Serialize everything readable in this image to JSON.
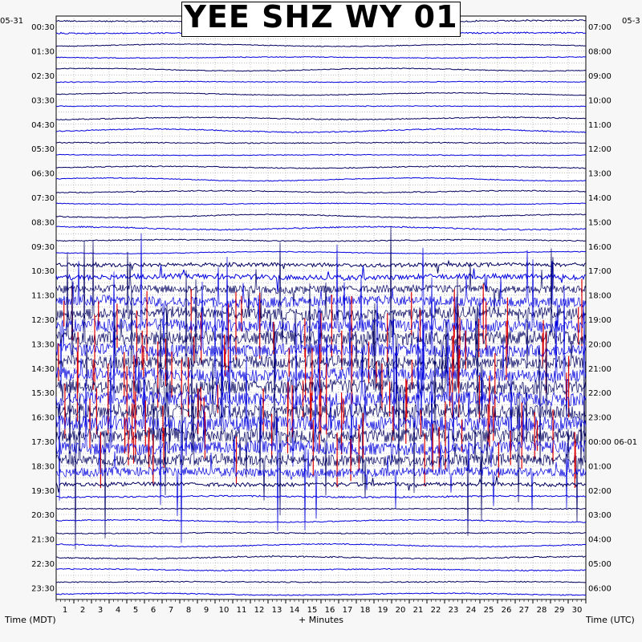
{
  "title": "YEE SHZ WY 01",
  "left_date": "05-31",
  "right_date": "05-3",
  "x_axis_label": "+ Minutes",
  "left_axis_label": "Time (MDT)",
  "right_axis_label": "Time (UTC)",
  "colors": {
    "trace_dark": "#000060",
    "trace_blue": "#0000dd",
    "trace_red": "#dd0000",
    "trace_faint": "#9999dd",
    "background": "#f7f7f7",
    "plot_bg": "#ffffff"
  },
  "chart_data": {
    "type": "heatmap",
    "subtype": "helicorder",
    "title": "YEE SHZ WY 01",
    "xlabel": "+ Minutes",
    "x_ticks": [
      "1",
      "2",
      "3",
      "4",
      "5",
      "6",
      "7",
      "8",
      "9",
      "10",
      "11",
      "12",
      "13",
      "14",
      "15",
      "16",
      "17",
      "18",
      "19",
      "20",
      "21",
      "22",
      "23",
      "24",
      "25",
      "26",
      "27",
      "28",
      "29",
      "30"
    ],
    "xlim": [
      0,
      30
    ],
    "left_ticks": [
      "00:30",
      "01:30",
      "02:30",
      "03:30",
      "04:30",
      "05:30",
      "06:30",
      "07:30",
      "08:30",
      "09:30",
      "10:30",
      "11:30",
      "12:30",
      "13:30",
      "14:30",
      "15:30",
      "16:30",
      "17:30",
      "18:30",
      "19:30",
      "20:30",
      "21:30",
      "22:30",
      "23:30"
    ],
    "right_ticks": [
      "07:00",
      "08:00",
      "09:00",
      "10:00",
      "11:00",
      "12:00",
      "13:00",
      "14:00",
      "15:00",
      "16:00",
      "17:00",
      "18:00",
      "19:00",
      "20:00",
      "21:00",
      "22:00",
      "23:00",
      "00:00 06-01",
      "01:00",
      "02:00",
      "03:00",
      "04:00",
      "05:00",
      "06:00"
    ],
    "rows": 48,
    "row_minutes": 30,
    "grid": "dotted",
    "activity": [
      0.5,
      0.5,
      0.3,
      0.3,
      0.3,
      0.3,
      0.3,
      0.3,
      0.4,
      0.4,
      0.4,
      0.3,
      0.4,
      0.3,
      0.4,
      0.3,
      0.4,
      0.5,
      0.4,
      0.3,
      1.5,
      2.0,
      3.0,
      4.0,
      4.5,
      5.0,
      5.5,
      5.0,
      5.0,
      5.0,
      5.5,
      5.5,
      5.5,
      6.0,
      5.5,
      5.0,
      4.5,
      3.5,
      1.5,
      0.6,
      0.4,
      0.4,
      0.4,
      0.4,
      0.5,
      0.4,
      0.4,
      0.4
    ]
  }
}
